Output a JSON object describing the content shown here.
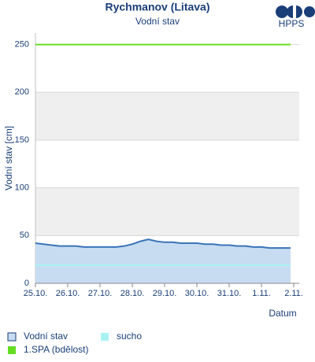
{
  "chart_data": {
    "type": "line",
    "title": "Rychmanov (Litava)",
    "subtitle": "Vodní stav",
    "logo": "HPPS",
    "ylabel": "Vodní stav [cm]",
    "xlabel": "Datum",
    "ylim": [
      0,
      262
    ],
    "yticks": [
      0,
      50,
      100,
      150,
      200,
      250
    ],
    "xlim": [
      0,
      8.17
    ],
    "xticks": [
      {
        "value": 0,
        "label": "25.10."
      },
      {
        "value": 1,
        "label": "26.10."
      },
      {
        "value": 2,
        "label": "27.10."
      },
      {
        "value": 3,
        "label": "28.10."
      },
      {
        "value": 4,
        "label": "29.10."
      },
      {
        "value": 5,
        "label": "30.10."
      },
      {
        "value": 6,
        "label": "31.10."
      },
      {
        "value": 7,
        "label": "1.11."
      },
      {
        "value": 8,
        "label": "2.11."
      }
    ],
    "grid": true,
    "series": [
      {
        "name": "Vodní stav",
        "color": "#3a74b8",
        "fill": "#c7dcf1",
        "x": [
          0,
          0.25,
          0.5,
          0.75,
          1,
          1.25,
          1.5,
          1.75,
          2,
          2.25,
          2.5,
          2.75,
          3,
          3.25,
          3.5,
          3.75,
          4,
          4.25,
          4.5,
          4.75,
          5,
          5.25,
          5.5,
          5.75,
          6,
          6.25,
          6.5,
          6.75,
          7,
          7.25,
          7.5,
          7.75,
          7.9
        ],
        "values": [
          42,
          41,
          40,
          39,
          39,
          39,
          38,
          38,
          38,
          38,
          38,
          39,
          41,
          44,
          46,
          44,
          43,
          43,
          42,
          42,
          42,
          41,
          41,
          40,
          40,
          39,
          39,
          38,
          38,
          37,
          37,
          37,
          37
        ]
      },
      {
        "name": "sucho",
        "color": "#aaf2f2",
        "x": [
          0,
          7.9
        ],
        "values": [
          19,
          19
        ]
      },
      {
        "name": "1.SPA (bdělost)",
        "color": "#66dd22",
        "x": [
          0,
          7.9
        ],
        "values": [
          250,
          250
        ]
      }
    ]
  }
}
